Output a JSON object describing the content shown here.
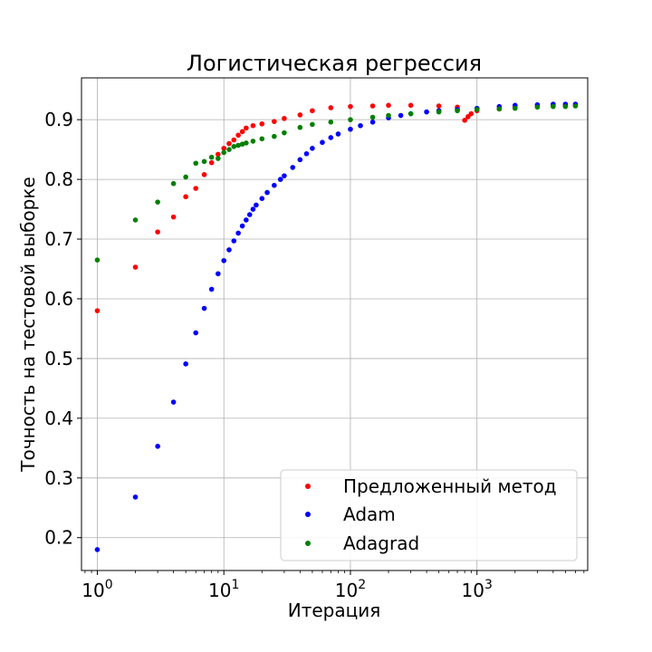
{
  "chart_data": {
    "type": "scatter",
    "title": "Логистическая регрессия",
    "xlabel": "Итерация",
    "ylabel": "Точность на тестовой выборке",
    "xscale": "log",
    "xlim": [
      0.75,
      7500
    ],
    "ylim": [
      0.145,
      0.97
    ],
    "x_ticks": [
      {
        "base": "10",
        "exp": "0",
        "value": 1
      },
      {
        "base": "10",
        "exp": "1",
        "value": 10
      },
      {
        "base": "10",
        "exp": "2",
        "value": 100
      },
      {
        "base": "10",
        "exp": "3",
        "value": 1000
      }
    ],
    "y_ticks": [
      {
        "value": 0.2,
        "label": "0.2"
      },
      {
        "value": 0.3,
        "label": "0.3"
      },
      {
        "value": 0.4,
        "label": "0.4"
      },
      {
        "value": 0.5,
        "label": "0.5"
      },
      {
        "value": 0.6,
        "label": "0.6"
      },
      {
        "value": 0.7,
        "label": "0.7"
      },
      {
        "value": 0.8,
        "label": "0.8"
      },
      {
        "value": 0.9,
        "label": "0.9"
      }
    ],
    "grid": true,
    "legend_position": "lower right",
    "series": [
      {
        "name": "Предложенный метод",
        "color": "#ff0000",
        "x": [
          1,
          2,
          3,
          4,
          5,
          6,
          7,
          8,
          9,
          10,
          11,
          12,
          13,
          14,
          15,
          17,
          20,
          25,
          30,
          40,
          50,
          70,
          100,
          150,
          200,
          300,
          500,
          700,
          800,
          850,
          900,
          1000,
          1500,
          2000,
          3000,
          4000,
          5000,
          6000
        ],
        "y": [
          0.58,
          0.653,
          0.712,
          0.737,
          0.771,
          0.785,
          0.808,
          0.828,
          0.842,
          0.852,
          0.86,
          0.866,
          0.874,
          0.88,
          0.886,
          0.89,
          0.893,
          0.897,
          0.902,
          0.908,
          0.915,
          0.92,
          0.922,
          0.923,
          0.924,
          0.924,
          0.923,
          0.921,
          0.899,
          0.905,
          0.91,
          0.915,
          0.918,
          0.92,
          0.922,
          0.923,
          0.924,
          0.924
        ]
      },
      {
        "name": "Adam",
        "color": "#0000ff",
        "x": [
          1,
          2,
          3,
          4,
          5,
          6,
          7,
          8,
          9,
          10,
          11,
          12,
          13,
          14,
          15,
          16,
          17,
          18,
          20,
          22,
          25,
          28,
          30,
          35,
          40,
          45,
          50,
          60,
          70,
          80,
          100,
          120,
          150,
          200,
          250,
          300,
          400,
          500,
          700,
          1000,
          1500,
          2000,
          3000,
          4000,
          5000,
          6000
        ],
        "y": [
          0.18,
          0.268,
          0.353,
          0.427,
          0.491,
          0.543,
          0.584,
          0.616,
          0.642,
          0.664,
          0.682,
          0.697,
          0.71,
          0.722,
          0.732,
          0.741,
          0.75,
          0.757,
          0.768,
          0.778,
          0.79,
          0.8,
          0.806,
          0.82,
          0.833,
          0.843,
          0.852,
          0.862,
          0.87,
          0.876,
          0.884,
          0.89,
          0.896,
          0.903,
          0.907,
          0.91,
          0.913,
          0.915,
          0.917,
          0.919,
          0.922,
          0.924,
          0.925,
          0.926,
          0.926,
          0.926
        ]
      },
      {
        "name": "Adagrad",
        "color": "#008000",
        "x": [
          1,
          2,
          3,
          4,
          5,
          6,
          7,
          8,
          9,
          10,
          11,
          12,
          13,
          14,
          15,
          17,
          20,
          25,
          30,
          40,
          50,
          70,
          100,
          150,
          200,
          300,
          500,
          700,
          1000,
          1500,
          2000,
          3000,
          4000,
          5000,
          6000
        ],
        "y": [
          0.665,
          0.732,
          0.762,
          0.793,
          0.804,
          0.827,
          0.83,
          0.837,
          0.835,
          0.845,
          0.85,
          0.855,
          0.857,
          0.859,
          0.861,
          0.864,
          0.868,
          0.872,
          0.878,
          0.887,
          0.892,
          0.896,
          0.9,
          0.904,
          0.907,
          0.91,
          0.913,
          0.915,
          0.917,
          0.918,
          0.919,
          0.921,
          0.922,
          0.922,
          0.923
        ]
      }
    ]
  }
}
